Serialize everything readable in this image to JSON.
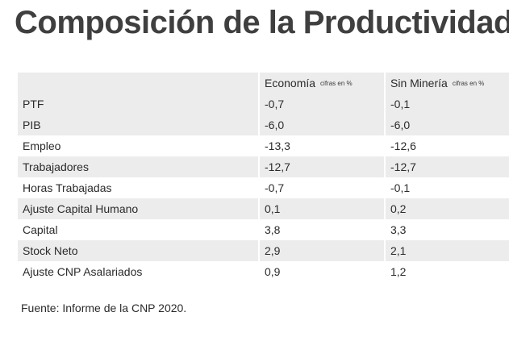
{
  "title": "Composición de la Productividad",
  "table": {
    "columns": [
      {
        "label": "",
        "unit": ""
      },
      {
        "label": "Economía",
        "unit": "cifras en %"
      },
      {
        "label": "Sin Minería",
        "unit": "cifras en %"
      }
    ],
    "rows": [
      {
        "label": "PTF",
        "economia": "-0,7",
        "sin_mineria": "-0,1"
      },
      {
        "label": "PIB",
        "economia": "-6,0",
        "sin_mineria": "-6,0"
      },
      {
        "label": "Empleo",
        "economia": "-13,3",
        "sin_mineria": "-12,6"
      },
      {
        "label": "Trabajadores",
        "economia": "-12,7",
        "sin_mineria": "-12,7"
      },
      {
        "label": "Horas Trabajadas",
        "economia": "-0,7",
        "sin_mineria": "-0,1"
      },
      {
        "label": "Ajuste Capital Humano",
        "economia": "0,1",
        "sin_mineria": "0,2"
      },
      {
        "label": "Capital",
        "economia": "3,8",
        "sin_mineria": "3,3"
      },
      {
        "label": "Stock Neto",
        "economia": "2,9",
        "sin_mineria": "2,1"
      },
      {
        "label": "Ajuste CNP Asalariados",
        "economia": "0,9",
        "sin_mineria": "1,2"
      }
    ]
  },
  "source": "Fuente: Informe de la CNP 2020.",
  "colors": {
    "header_bg": "#ececec",
    "shade_bg": "#ececec",
    "title": "#3f3f3f",
    "text": "#2b2b2b"
  }
}
